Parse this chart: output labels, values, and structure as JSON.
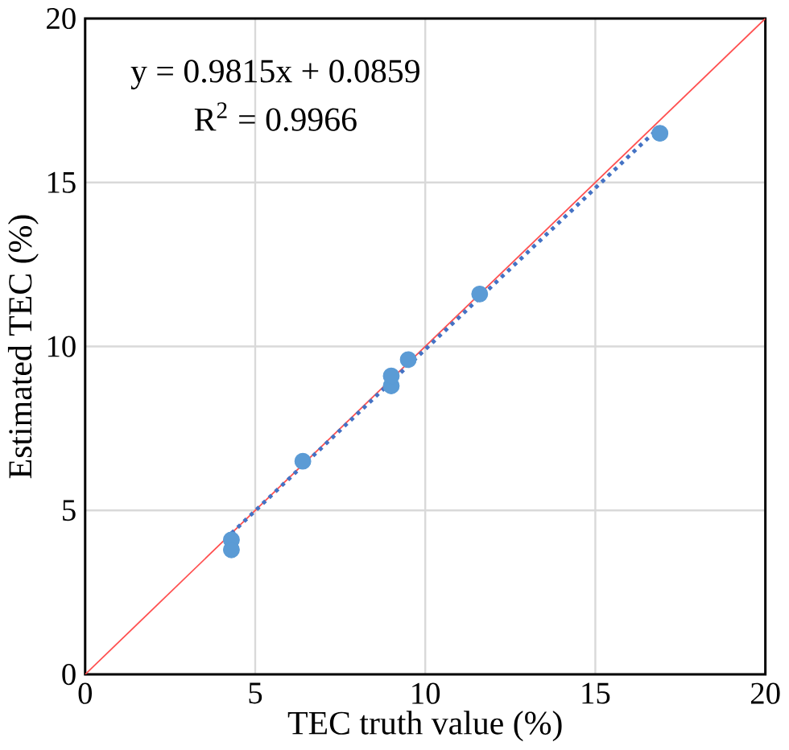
{
  "chart_data": {
    "type": "scatter",
    "xlabel": "TEC truth value (%)",
    "ylabel": "Estimated TEC (%)",
    "xlim": [
      0,
      20
    ],
    "ylim": [
      0,
      20
    ],
    "xticks": [
      0,
      5,
      10,
      15,
      20
    ],
    "yticks": [
      0,
      5,
      10,
      15,
      20
    ],
    "grid": true,
    "annotations": [
      "y = 0.9815x + 0.0859",
      "R$^{2}$ = 0.9966"
    ],
    "series": [
      {
        "type": "line",
        "color": "#ff5050",
        "line_style": "solid",
        "marker": "none",
        "x": [
          0,
          20
        ],
        "values": [
          0,
          20
        ]
      },
      {
        "color": "#5b9bd5",
        "marker": "circle",
        "x": [
          4.3,
          4.3,
          6.4,
          9.0,
          9.0,
          9.5,
          11.6,
          16.9
        ],
        "values": [
          4.1,
          3.8,
          6.5,
          8.8,
          9.1,
          9.6,
          11.6,
          16.5
        ]
      },
      {
        "type": "line",
        "color": "#4472c4",
        "line_style": "dotted",
        "marker": "none",
        "x": [
          4.3,
          16.9
        ],
        "values": [
          4.3,
          16.7
        ]
      }
    ]
  }
}
